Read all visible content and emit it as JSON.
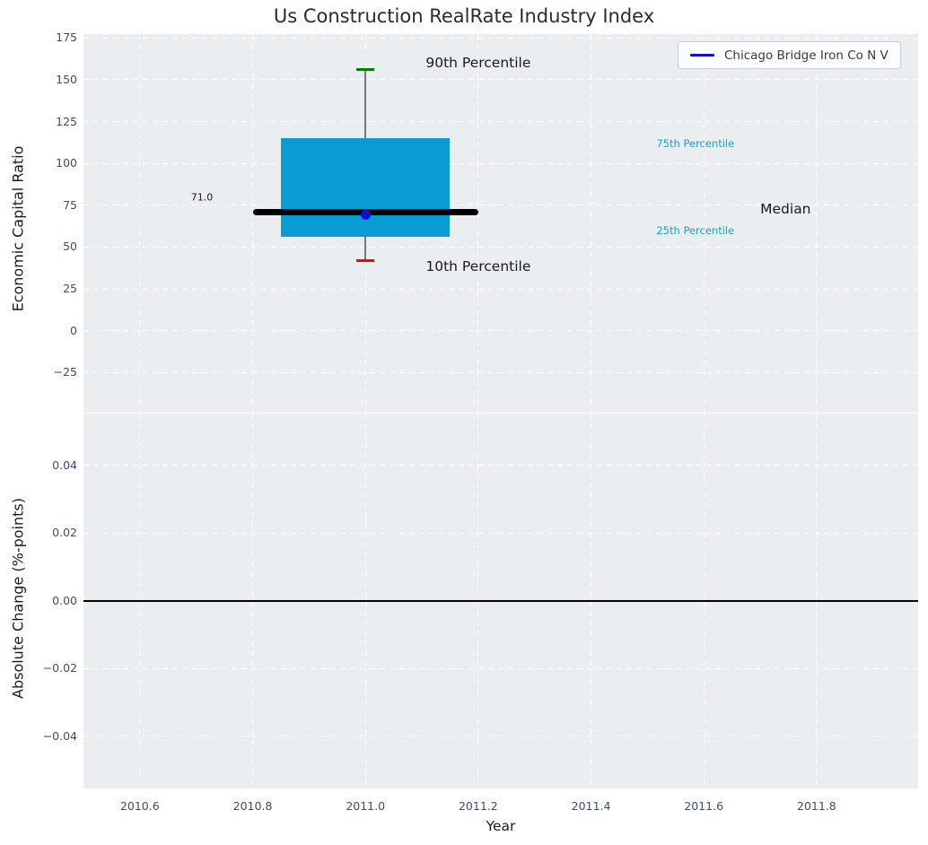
{
  "title": "Us Construction RealRate Industry Index",
  "legend": {
    "label": "Chicago Bridge Iron Co N V"
  },
  "colors": {
    "figure_bg": "#ffffff",
    "axes_bg": "#eaeef0",
    "grid": "#ffffff",
    "box_fill": "#099bd3",
    "median_line": "#000000",
    "whisker": "#777777",
    "cap_90th": "#008000",
    "cap_10th": "#ff0000",
    "company_blue": "#1010d0",
    "tick_label": "#3d4c6e",
    "text_dark": "#1a1a1a",
    "accent_cyan": "#17a0d4",
    "zero_line": "#000000"
  },
  "x_axis": {
    "label": "Year",
    "xlim": [
      2010.5,
      2011.98
    ],
    "ticks": [
      {
        "v": 2010.6,
        "label": "2010.6"
      },
      {
        "v": 2010.8,
        "label": "2010.8"
      },
      {
        "v": 2011.0,
        "label": "2011.0"
      },
      {
        "v": 2011.2,
        "label": "2011.2"
      },
      {
        "v": 2011.4,
        "label": "2011.4"
      },
      {
        "v": 2011.6,
        "label": "2011.6"
      },
      {
        "v": 2011.8,
        "label": "2011.8"
      }
    ]
  },
  "chart_data": [
    {
      "type": "boxplot",
      "title": "Us Construction RealRate Industry Index",
      "ylabel": "Economic Capital Ratio",
      "ylim": [
        -49,
        177.3
      ],
      "grid": true,
      "legend_position": "upper right",
      "yticks": [
        {
          "v": 175,
          "label": "175"
        },
        {
          "v": 150,
          "label": "150"
        },
        {
          "v": 125,
          "label": "125"
        },
        {
          "v": 100,
          "label": "100"
        },
        {
          "v": 75,
          "label": "75"
        },
        {
          "v": 50,
          "label": "50"
        },
        {
          "v": 25,
          "label": "25"
        },
        {
          "v": 0,
          "label": "0"
        },
        {
          "v": -25,
          "label": "−25"
        }
      ],
      "box": {
        "x": 2011.0,
        "p90": 156,
        "p75": 115,
        "median": 71,
        "p25": 56,
        "p10": 42,
        "box_width_years": 0.3,
        "median_width_years": 0.4
      },
      "company_point": {
        "series": "Chicago Bridge Iron Co N V",
        "x": 2011.0,
        "value": 69
      },
      "annotations": [
        {
          "text": "90th Percentile",
          "x": 2011.2,
          "y": 160,
          "style": "large"
        },
        {
          "text": "10th Percentile",
          "x": 2011.2,
          "y": 38.5,
          "style": "large"
        },
        {
          "text": "75th Percentile",
          "x": 2011.585,
          "y": 112,
          "style": "small"
        },
        {
          "text": "25th Percentile",
          "x": 2011.585,
          "y": 60,
          "style": "small"
        },
        {
          "text": "Median",
          "x": 2011.745,
          "y": 72.5,
          "style": "large"
        },
        {
          "text": "71.0",
          "x": 2010.71,
          "y": 79.5,
          "style": "tiny"
        }
      ]
    },
    {
      "type": "line",
      "ylabel": "Absolute Change (%-points)",
      "ylim": [
        -0.0555,
        0.0553
      ],
      "grid": true,
      "yticks": [
        {
          "v": 0.04,
          "label": "0.04"
        },
        {
          "v": 0.02,
          "label": "0.02"
        },
        {
          "v": 0,
          "label": "0.00"
        },
        {
          "v": -0.02,
          "label": "−0.02"
        },
        {
          "v": -0.04,
          "label": "−0.04"
        }
      ],
      "zero_line": 0
    }
  ]
}
